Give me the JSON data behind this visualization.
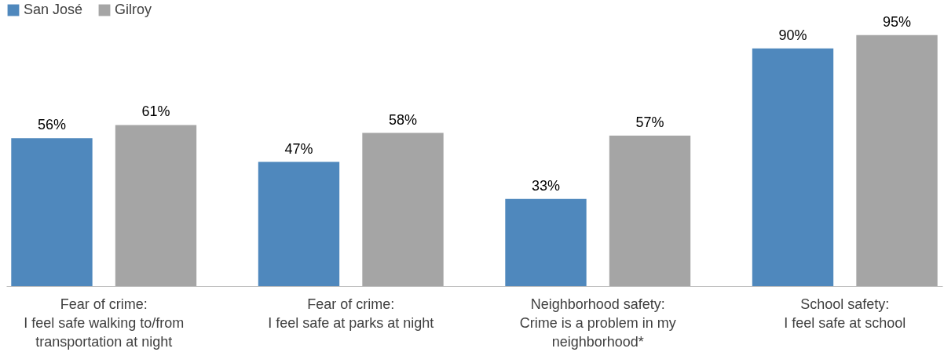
{
  "chart_data": {
    "type": "bar",
    "categories": [
      "Fear of crime:\nI feel safe walking to/from\ntransportation at night",
      "Fear of crime:\nI feel safe at parks at night",
      "Neighborhood safety:\nCrime is a problem in my\nneighborhood*",
      "School safety:\nI feel safe at school"
    ],
    "series": [
      {
        "name": "San José",
        "color": "#4f88bd",
        "values": [
          56,
          47,
          33,
          90
        ],
        "value_labels": [
          "56%",
          "47%",
          "33%",
          "90%"
        ]
      },
      {
        "name": "Gilroy",
        "color": "#a5a5a5",
        "values": [
          61,
          58,
          57,
          95
        ],
        "value_labels": [
          "61%",
          "58%",
          "57%",
          "95%"
        ]
      }
    ],
    "legend": "top left"
  }
}
